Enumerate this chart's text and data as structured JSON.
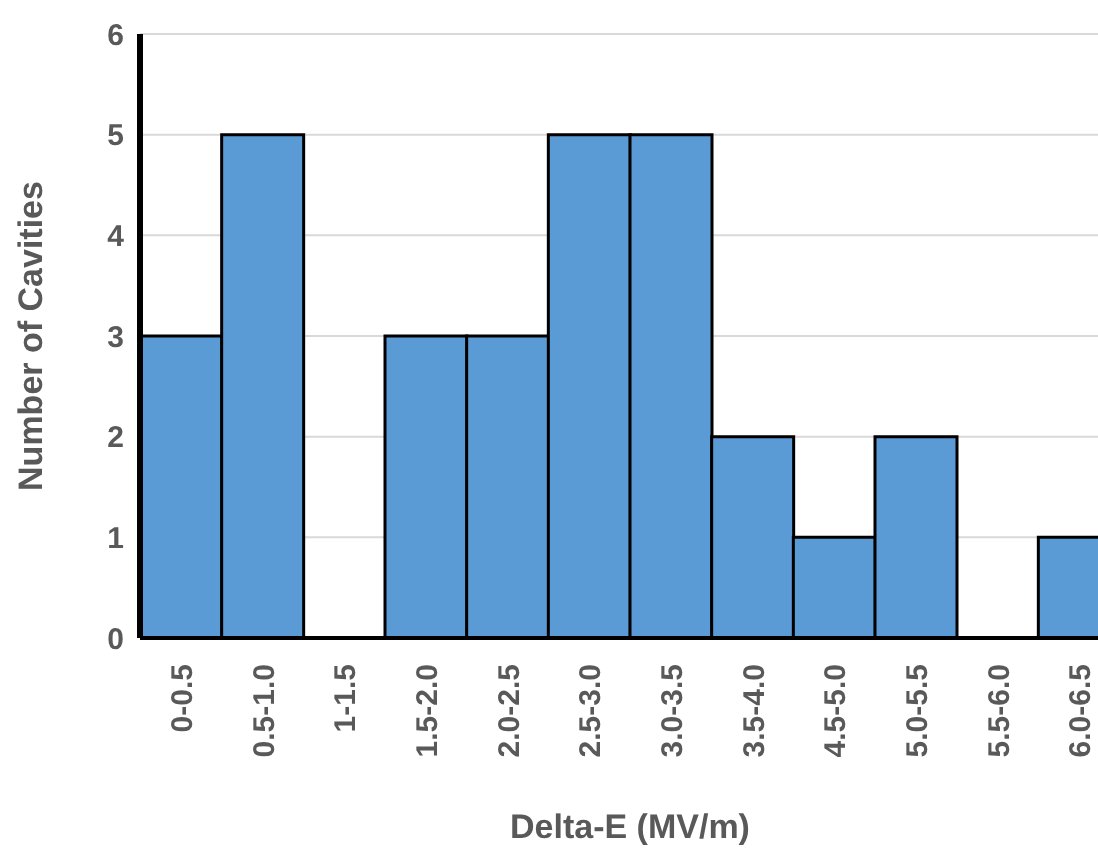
{
  "chart_data": {
    "type": "bar",
    "xlabel": "Delta-E (MV/m)",
    "ylabel": "Number of Cavities",
    "categories": [
      "0-0.5",
      "0.5-1.0",
      "1-1.5",
      "1.5-2.0",
      "2.0-2.5",
      "2.5-3.0",
      "3.0-3.5",
      "3.5-4.0",
      "4.5-5.0",
      "5.0-5.5",
      "5.5-6.0",
      "6.0-6.5"
    ],
    "values": [
      3,
      5,
      0,
      3,
      3,
      5,
      5,
      2,
      1,
      2,
      0,
      1
    ],
    "color": "#5b9bd5",
    "ylim": [
      0,
      6
    ],
    "yticks": [
      0,
      1,
      2,
      3,
      4,
      5,
      6
    ],
    "grid": "y",
    "legend": false
  }
}
